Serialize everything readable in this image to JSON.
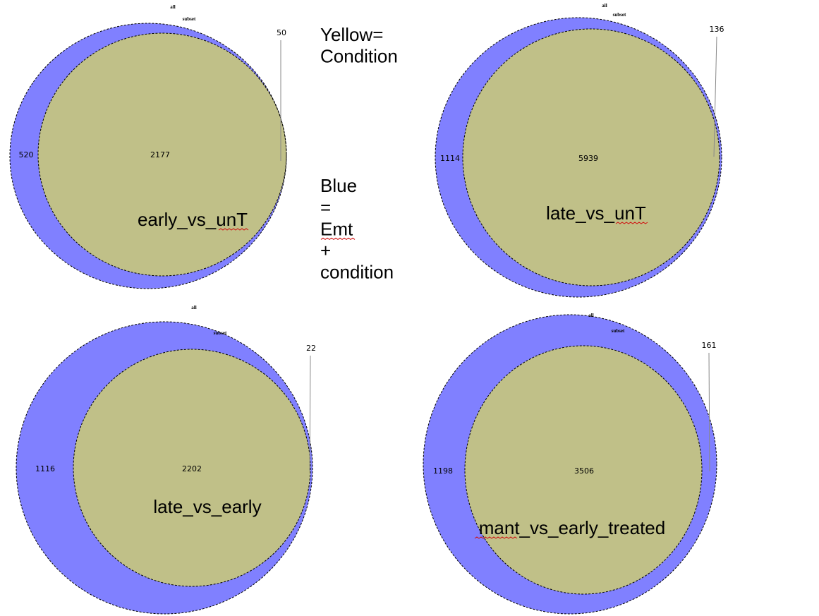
{
  "colors": {
    "all_fill": "#8080ff",
    "subset_fill": "#ffff80",
    "overlap_fill": "#c0c088",
    "outline": "#000000",
    "squiggle": "#d01010"
  },
  "legend": {
    "lines": [
      "Yellow=",
      "Condition",
      "",
      "",
      "",
      "",
      "",
      "Blue",
      "=",
      "Emt",
      "+",
      "condition"
    ]
  },
  "venns": [
    {
      "id": "early_vs_unT",
      "set_a_label": "all",
      "set_b_label": "subset",
      "only_a": "520",
      "both": "2177",
      "only_b": "50",
      "title": "early_vs_unT"
    },
    {
      "id": "late_vs_unT",
      "set_a_label": "all",
      "set_b_label": "subset",
      "only_a": "1114",
      "both": "5939",
      "only_b": "136",
      "title": "late_vs_unT"
    },
    {
      "id": "late_vs_early",
      "set_a_label": "all",
      "set_b_label": "subset",
      "only_a": "1116",
      "both": "2202",
      "only_b": "22",
      "title": "late_vs_early"
    },
    {
      "id": "mant_vs_early_treated",
      "set_a_label": "all",
      "set_b_label": "subset",
      "only_a": "1198",
      "both": "3506",
      "only_b": "161",
      "title": "mant_vs_early_treated"
    }
  ]
}
